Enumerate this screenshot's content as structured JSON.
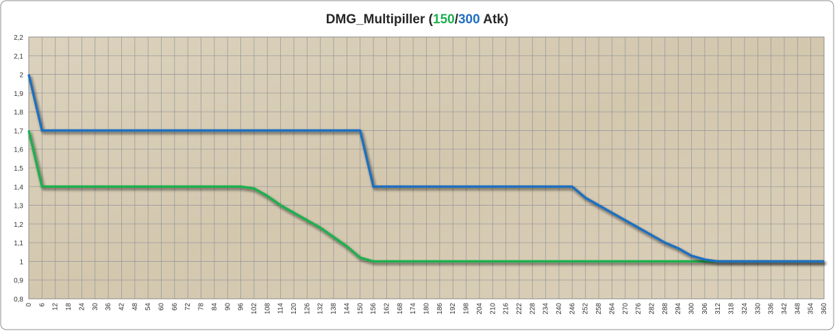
{
  "chart_data": {
    "type": "line",
    "title_parts": [
      {
        "text": "DMG_Multipiller (",
        "color": "#262626"
      },
      {
        "text": "150",
        "color": "#1fb04f"
      },
      {
        "text": "/",
        "color": "#262626"
      },
      {
        "text": "300",
        "color": "#1f6fbf"
      },
      {
        "text": " Atk)",
        "color": "#262626"
      }
    ],
    "x": [
      0,
      6,
      12,
      18,
      24,
      30,
      36,
      42,
      48,
      54,
      60,
      66,
      72,
      78,
      84,
      90,
      96,
      102,
      108,
      114,
      120,
      126,
      132,
      138,
      144,
      150,
      156,
      162,
      168,
      174,
      180,
      186,
      192,
      198,
      204,
      210,
      216,
      222,
      228,
      234,
      240,
      246,
      252,
      258,
      264,
      270,
      276,
      282,
      288,
      294,
      300,
      306,
      312,
      318,
      324,
      330,
      336,
      342,
      348,
      354,
      360
    ],
    "xlim": [
      0,
      360
    ],
    "xticks": [
      0,
      6,
      12,
      18,
      24,
      30,
      36,
      42,
      48,
      54,
      60,
      66,
      72,
      78,
      84,
      90,
      96,
      102,
      108,
      114,
      120,
      126,
      132,
      138,
      144,
      150,
      156,
      162,
      168,
      174,
      180,
      186,
      192,
      198,
      204,
      210,
      216,
      222,
      228,
      234,
      240,
      246,
      252,
      258,
      264,
      270,
      276,
      282,
      288,
      294,
      300,
      306,
      312,
      318,
      324,
      330,
      336,
      342,
      348,
      354,
      360
    ],
    "ylim": [
      0.8,
      2.2
    ],
    "yticks": [
      {
        "value": 0.8,
        "label": "0,8"
      },
      {
        "value": 0.9,
        "label": "0,9"
      },
      1,
      {
        "value": 1.1,
        "label": "1,1"
      },
      {
        "value": 1.2,
        "label": "1,2"
      },
      {
        "value": 1.3,
        "label": "1,3"
      },
      {
        "value": 1.4,
        "label": "1,4"
      },
      {
        "value": 1.5,
        "label": "1,5"
      },
      {
        "value": 1.6,
        "label": "1,6"
      },
      {
        "value": 1.7,
        "label": "1,7"
      },
      {
        "value": 1.8,
        "label": "1,8"
      },
      {
        "value": 1.9,
        "label": "1,9"
      },
      2,
      {
        "value": 2.1,
        "label": "2,1"
      },
      {
        "value": 2.2,
        "label": "2,2"
      }
    ],
    "grid": true,
    "series": [
      {
        "color": "#1fb04f",
        "values": [
          1.7,
          1.4,
          1.4,
          1.4,
          1.4,
          1.4,
          1.4,
          1.4,
          1.4,
          1.4,
          1.4,
          1.4,
          1.4,
          1.4,
          1.4,
          1.4,
          1.4,
          1.39,
          1.35,
          1.3,
          1.26,
          1.22,
          1.18,
          1.13,
          1.08,
          1.02,
          1,
          1,
          1,
          1,
          1,
          1,
          1,
          1,
          1,
          1,
          1,
          1,
          1,
          1,
          1,
          1,
          1,
          1,
          1,
          1,
          1,
          1,
          1,
          1,
          1,
          1,
          1,
          1,
          1,
          1,
          1,
          1,
          1,
          1,
          1
        ]
      },
      {
        "color": "#1f6fbf",
        "values": [
          2,
          1.7,
          1.7,
          1.7,
          1.7,
          1.7,
          1.7,
          1.7,
          1.7,
          1.7,
          1.7,
          1.7,
          1.7,
          1.7,
          1.7,
          1.7,
          1.7,
          1.7,
          1.7,
          1.7,
          1.7,
          1.7,
          1.7,
          1.7,
          1.7,
          1.7,
          1.4,
          1.4,
          1.4,
          1.4,
          1.4,
          1.4,
          1.4,
          1.4,
          1.4,
          1.4,
          1.4,
          1.4,
          1.4,
          1.4,
          1.4,
          1.4,
          1.34,
          1.3,
          1.26,
          1.22,
          1.18,
          1.14,
          1.1,
          1.07,
          1.03,
          1.01,
          1,
          1,
          1,
          1,
          1,
          1,
          1,
          1,
          1
        ]
      }
    ]
  }
}
